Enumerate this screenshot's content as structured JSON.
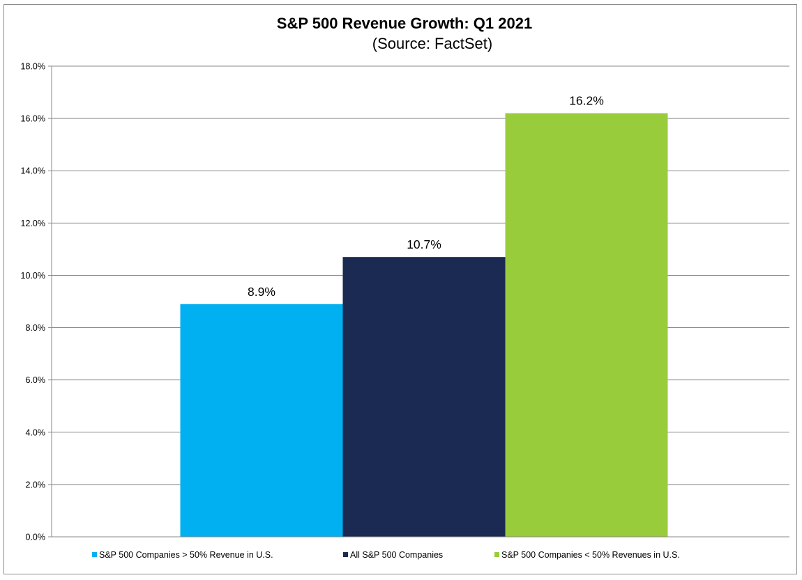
{
  "chart_data": {
    "type": "bar",
    "title": "S&P 500 Revenue Growth: Q1 2021",
    "subtitle": "(Source: FactSet)",
    "xlabel": "",
    "ylabel": "",
    "ylim": [
      0,
      18
    ],
    "y_tick_step": 2,
    "y_tick_labels": [
      "0.0%",
      "2.0%",
      "4.0%",
      "6.0%",
      "8.0%",
      "10.0%",
      "12.0%",
      "14.0%",
      "16.0%",
      "18.0%"
    ],
    "grid": true,
    "legend_position": "bottom",
    "series": [
      {
        "name": "S&P 500 Companies > 50% Revenue in U.S.",
        "values": [
          8.9
        ],
        "label": "8.9%",
        "color": "#00b0f0"
      },
      {
        "name": "All S&P 500 Companies",
        "values": [
          10.7
        ],
        "label": "10.7%",
        "color": "#1b2a53"
      },
      {
        "name": "S&P 500 Companies < 50% Revenues in U.S.",
        "values": [
          16.2
        ],
        "label": "16.2%",
        "color": "#99cc3b"
      }
    ]
  }
}
